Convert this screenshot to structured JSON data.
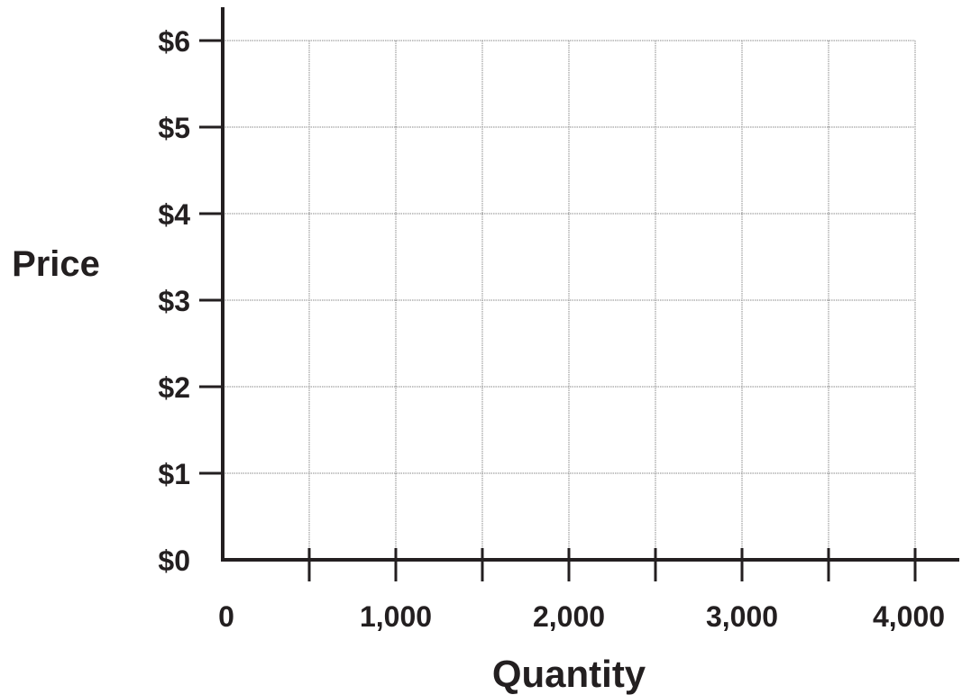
{
  "chart_data": {
    "type": "line",
    "title": "",
    "xlabel": "Quantity",
    "ylabel": "Price",
    "xlim": [
      0,
      4000
    ],
    "ylim": [
      0,
      6
    ],
    "x_ticks": [
      {
        "value": 0,
        "label": "0"
      },
      {
        "value": 1000,
        "label": "1,000"
      },
      {
        "value": 2000,
        "label": "2,000"
      },
      {
        "value": 3000,
        "label": "3,000"
      },
      {
        "value": 4000,
        "label": "4,000"
      }
    ],
    "x_minor_step": 500,
    "y_ticks": [
      {
        "value": 0,
        "label": "$0"
      },
      {
        "value": 1,
        "label": "$1"
      },
      {
        "value": 2,
        "label": "$2"
      },
      {
        "value": 3,
        "label": "$3"
      },
      {
        "value": 4,
        "label": "$4"
      },
      {
        "value": 5,
        "label": "$5"
      },
      {
        "value": 6,
        "label": "$6"
      }
    ],
    "grid": true,
    "series": [],
    "colors": {
      "axis": "#231f20",
      "grid": "#8a8a8a",
      "text": "#231f20"
    }
  }
}
